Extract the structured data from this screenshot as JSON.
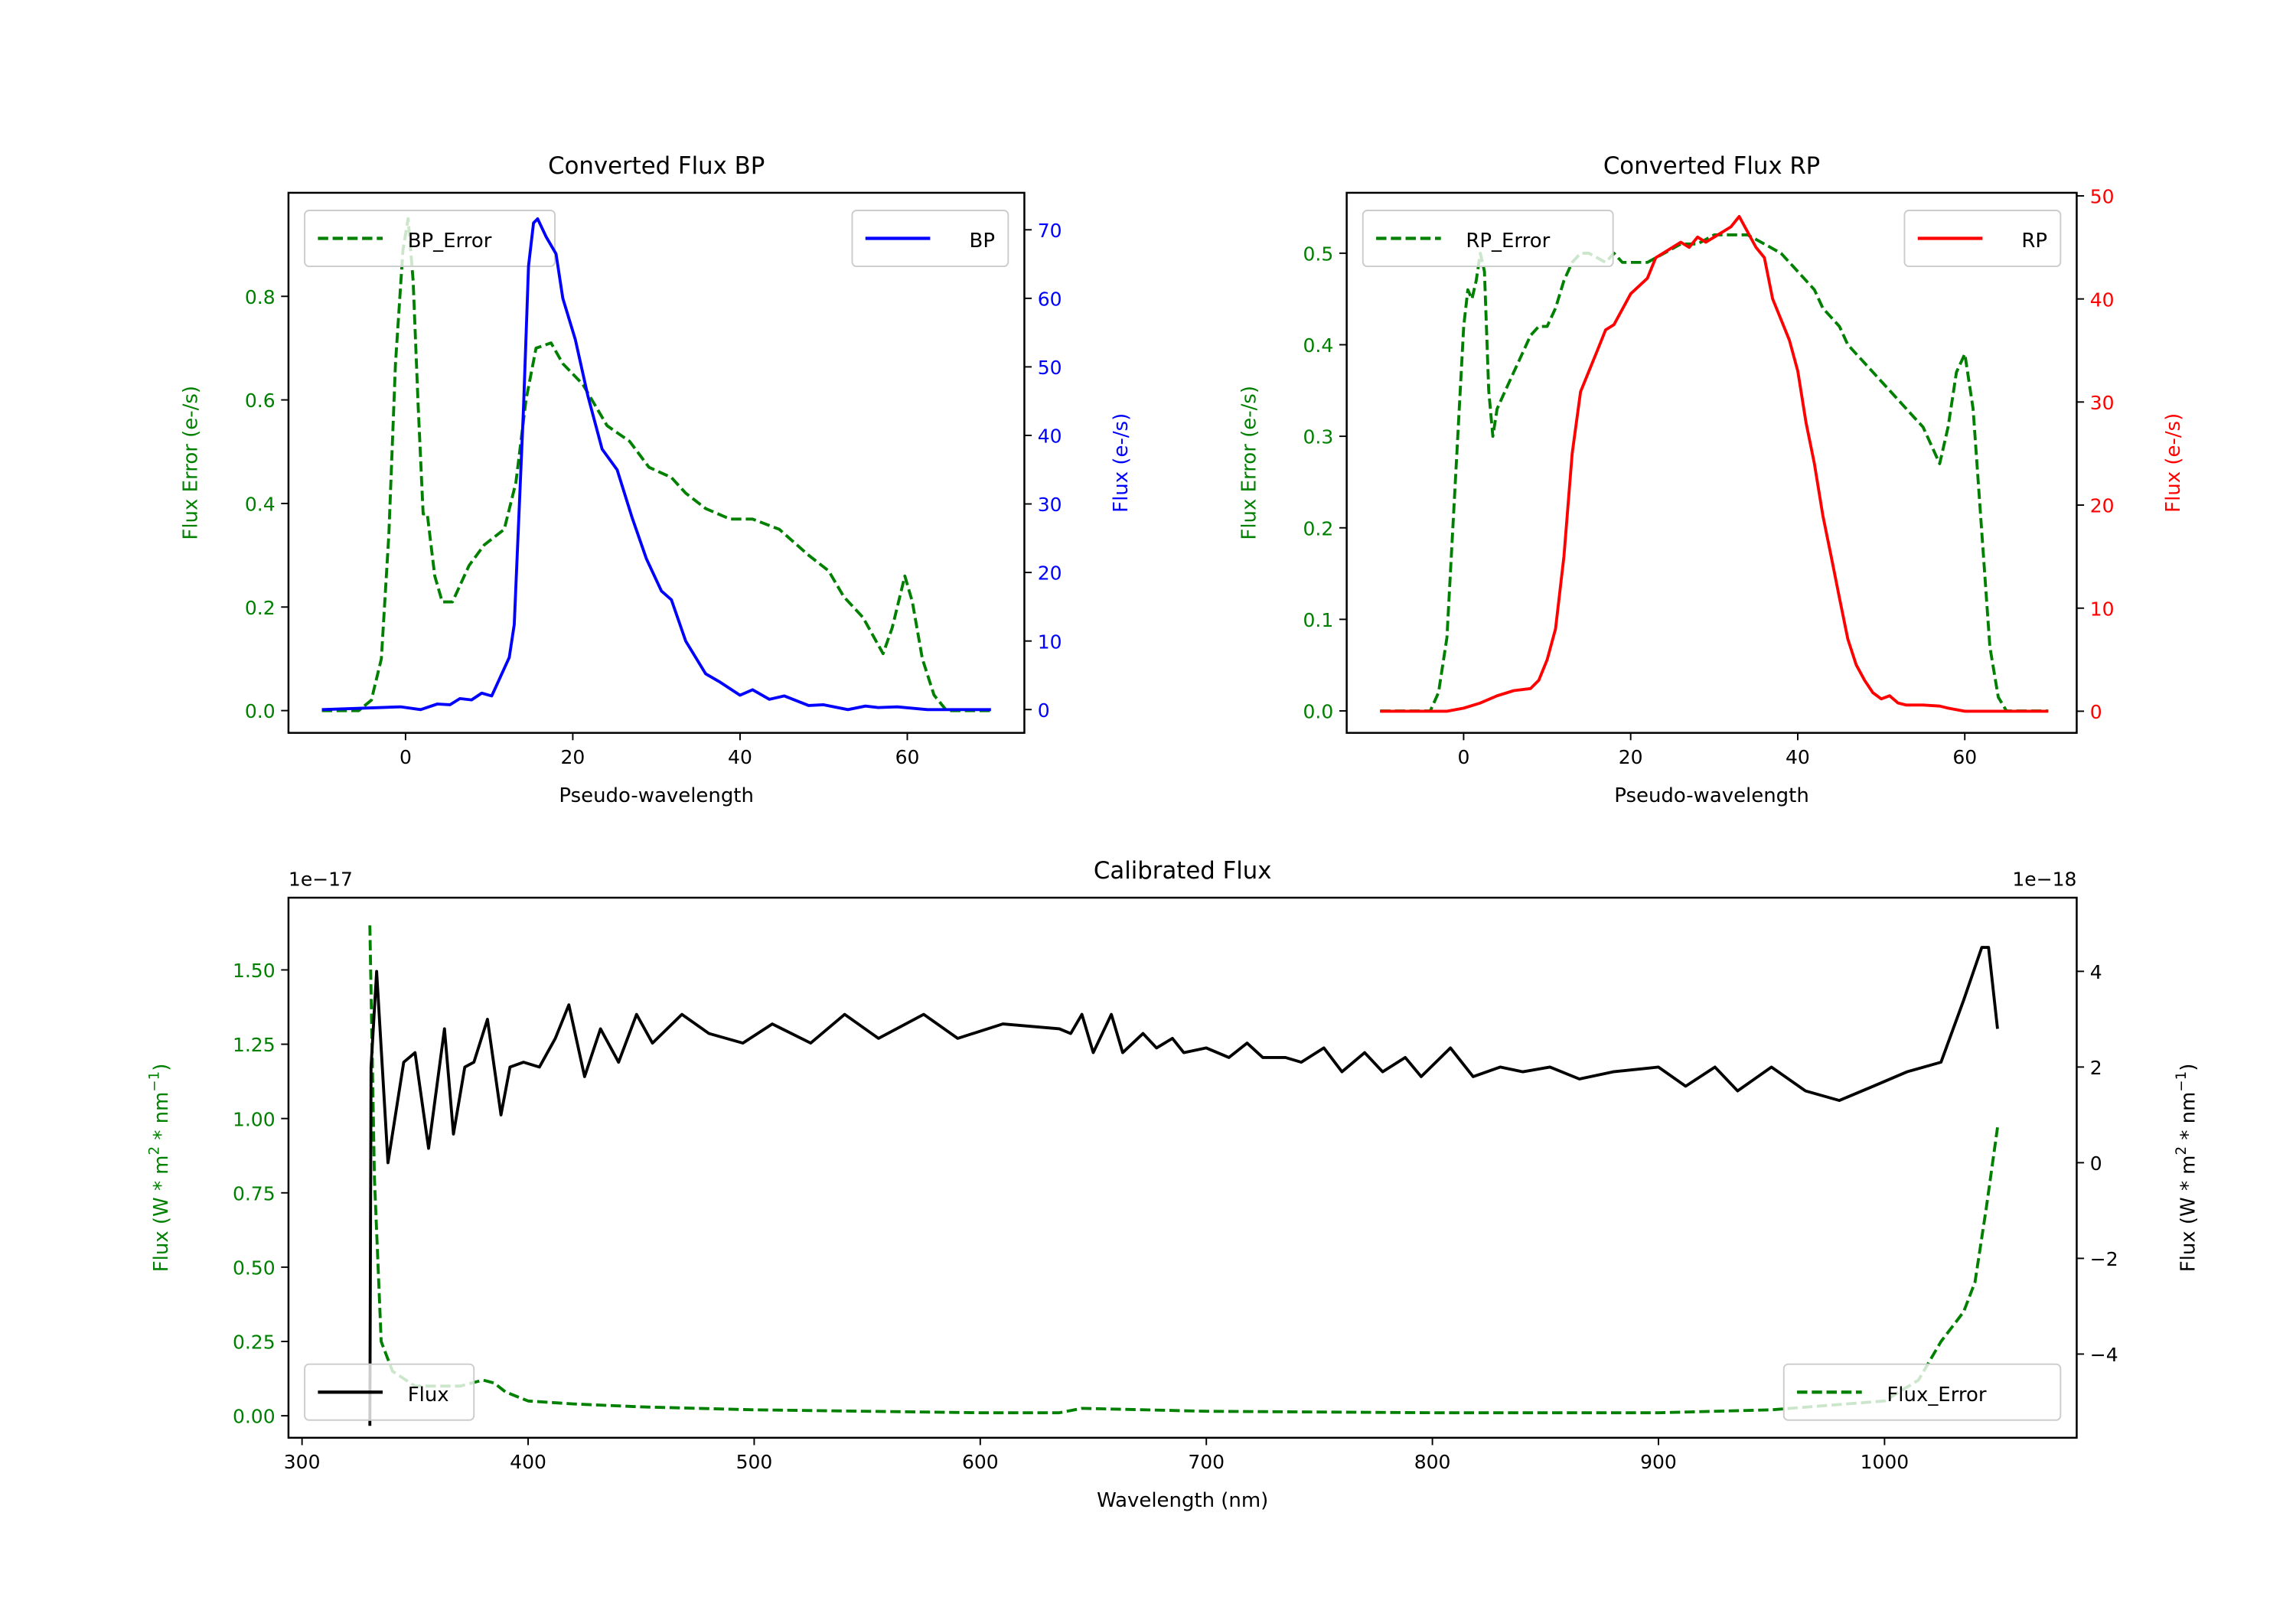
{
  "chart_data": [
    {
      "type": "line",
      "title": "Converted Flux BP",
      "xlabel": "Pseudo-wavelength",
      "ylabel": "Flux Error (e-/s)",
      "ylabel_right": "Flux (e-/s)",
      "xlim": [
        -14,
        74
      ],
      "ylim": [
        -0.043,
        1.0
      ],
      "ylim_right": [
        -3.4,
        75.4
      ],
      "xticks": [
        0,
        20,
        40,
        60
      ],
      "yticks": [
        "0.0",
        "0.2",
        "0.4",
        "0.6",
        "0.8"
      ],
      "yticks_right": [
        "0",
        "10",
        "20",
        "30",
        "40",
        "50",
        "60",
        "70"
      ],
      "series": [
        {
          "name": "BP_Error",
          "axis": "left",
          "style": "dashed",
          "color": "#008000",
          "legend": "upper-left",
          "x": [
            -10,
            -5.6,
            -4.1,
            -2.9,
            -2,
            -1.2,
            -0.3,
            0.3,
            0.9,
            1.5,
            2.1,
            2.6,
            3.5,
            4.4,
            5.6,
            7.6,
            9.4,
            11.8,
            13.2,
            14.4,
            15.6,
            17.4,
            18.8,
            21.2,
            24.1,
            26.8,
            29.1,
            31.8,
            33.5,
            35.9,
            38.8,
            41.5,
            44.7,
            48.2,
            50.6,
            52.4,
            54.7,
            57.1,
            58.2,
            59.7,
            60.6,
            61.8,
            63.2,
            64.7,
            70
          ],
          "y": [
            0,
            0,
            0.02,
            0.1,
            0.34,
            0.67,
            0.89,
            0.95,
            0.83,
            0.59,
            0.38,
            0.38,
            0.26,
            0.21,
            0.21,
            0.28,
            0.32,
            0.35,
            0.44,
            0.6,
            0.7,
            0.71,
            0.67,
            0.63,
            0.55,
            0.52,
            0.47,
            0.45,
            0.42,
            0.39,
            0.37,
            0.37,
            0.35,
            0.3,
            0.27,
            0.22,
            0.18,
            0.11,
            0.16,
            0.26,
            0.21,
            0.1,
            0.03,
            0,
            0
          ]
        },
        {
          "name": "BP",
          "axis": "right",
          "style": "solid",
          "color": "#0000ff",
          "legend": "upper-right",
          "x": [
            -10,
            -0.6,
            1.8,
            3.8,
            5.3,
            6.5,
            7.9,
            9.1,
            10.3,
            12.4,
            13,
            14.1,
            14.7,
            15.3,
            15.8,
            16.8,
            18,
            18.8,
            20.3,
            21.8,
            23.5,
            25.3,
            27.1,
            28.8,
            30.6,
            31.8,
            33.5,
            35.9,
            37.6,
            40,
            41.5,
            43.5,
            45.3,
            48.2,
            50,
            52.9,
            55,
            56.5,
            58.8,
            62.4,
            70
          ],
          "y": [
            0,
            0.4,
            0,
            0.8,
            0.7,
            1.6,
            1.4,
            2.4,
            2,
            7.6,
            12.4,
            44,
            64.7,
            71,
            71.6,
            69,
            66.5,
            60,
            54,
            45.8,
            38,
            35,
            28,
            22,
            17.3,
            16,
            10,
            5.2,
            4,
            2.1,
            2.9,
            1.5,
            2,
            0.6,
            0.7,
            0,
            0.5,
            0.3,
            0.4,
            0,
            0
          ]
        }
      ]
    },
    {
      "type": "line",
      "title": "Converted Flux RP",
      "xlabel": "Pseudo-wavelength",
      "ylabel": "Flux Error (e-/s)",
      "ylabel_right": "Flux (e-/s)",
      "xlim": [
        -14,
        73.4
      ],
      "ylim": [
        -0.024,
        0.566
      ],
      "ylim_right": [
        -2.1,
        50.3
      ],
      "xticks": [
        0,
        20,
        40,
        60
      ],
      "yticks": [
        "0.0",
        "0.1",
        "0.2",
        "0.3",
        "0.4",
        "0.5"
      ],
      "yticks_right": [
        "0",
        "10",
        "20",
        "30",
        "40",
        "50"
      ],
      "series": [
        {
          "name": "RP_Error",
          "axis": "left",
          "style": "dashed",
          "color": "#008000",
          "legend": "upper-left",
          "x": [
            -10,
            -4,
            -3,
            -2,
            -1,
            0,
            0.5,
            1,
            1.5,
            2,
            2.5,
            3,
            3.5,
            4,
            5,
            6,
            7,
            8,
            9,
            10,
            11,
            12,
            13,
            14,
            15,
            16,
            17,
            18,
            19,
            20,
            22,
            24,
            26,
            28,
            30,
            32,
            34,
            36,
            38,
            40,
            42,
            43,
            45,
            46,
            48,
            50,
            52,
            54,
            55,
            56,
            57,
            58,
            59,
            60,
            61,
            62,
            63,
            64,
            65,
            70
          ],
          "y": [
            0,
            0,
            0.02,
            0.08,
            0.25,
            0.42,
            0.46,
            0.45,
            0.47,
            0.5,
            0.48,
            0.35,
            0.3,
            0.33,
            0.35,
            0.37,
            0.39,
            0.41,
            0.42,
            0.42,
            0.44,
            0.47,
            0.49,
            0.5,
            0.5,
            0.495,
            0.49,
            0.5,
            0.49,
            0.49,
            0.49,
            0.5,
            0.51,
            0.51,
            0.52,
            0.52,
            0.52,
            0.51,
            0.5,
            0.48,
            0.46,
            0.44,
            0.42,
            0.4,
            0.38,
            0.36,
            0.34,
            0.32,
            0.31,
            0.29,
            0.27,
            0.31,
            0.37,
            0.39,
            0.33,
            0.2,
            0.07,
            0.015,
            0,
            0
          ]
        },
        {
          "name": "RP",
          "axis": "right",
          "style": "solid",
          "color": "#ff0000",
          "legend": "upper-right",
          "x": [
            -10,
            -2,
            0,
            2,
            4,
            6,
            8,
            9,
            10,
            11,
            12,
            13,
            14,
            15,
            16,
            17,
            18,
            19,
            20,
            22,
            23,
            24,
            26,
            27,
            28,
            29,
            30,
            31,
            32,
            33,
            34,
            35,
            36,
            37,
            38,
            39,
            40,
            41,
            42,
            43,
            44,
            45,
            46,
            47,
            48,
            49,
            50,
            51,
            52,
            53,
            55,
            57,
            58,
            60,
            70
          ],
          "y": [
            0,
            0,
            0.3,
            0.8,
            1.5,
            2,
            2.2,
            3,
            5,
            8,
            15,
            25,
            31,
            33,
            35,
            37,
            37.5,
            39,
            40.5,
            42,
            44,
            44.5,
            45.5,
            45,
            46,
            45.5,
            46,
            46.5,
            47,
            48,
            46.5,
            45,
            44,
            40,
            38,
            36,
            33,
            28,
            24,
            19,
            15,
            11,
            7,
            4.5,
            3,
            1.8,
            1.2,
            1.5,
            0.8,
            0.6,
            0.6,
            0.5,
            0.3,
            0,
            0
          ]
        }
      ]
    },
    {
      "type": "line",
      "title": "Calibrated Flux",
      "xlabel": "Wavelength (nm)",
      "ylabel": "Flux (W * m^2 * nm^-1)",
      "ylabel_right": "Flux (W * m^2 * nm^-1)",
      "offset_left": "1e−17",
      "offset_right": "1e−18",
      "xlim": [
        294,
        1085
      ],
      "ylim": [
        -0.074,
        1.743
      ],
      "ylim_right": [
        -5.75,
        5.54
      ],
      "xticks": [
        300,
        400,
        500,
        600,
        700,
        800,
        900,
        1000
      ],
      "yticks": [
        "0.00",
        "0.25",
        "0.50",
        "0.75",
        "1.00",
        "1.25",
        "1.50"
      ],
      "yticks_right": [
        "−4",
        "−2",
        "0",
        "2",
        "4"
      ],
      "series": [
        {
          "name": "Flux_Error",
          "axis": "left",
          "style": "dashed",
          "color": "#008000",
          "legend": "lower-right",
          "x": [
            330,
            332,
            335,
            340,
            350,
            370,
            380,
            385,
            390,
            400,
            420,
            450,
            500,
            600,
            635,
            645,
            700,
            800,
            900,
            950,
            1000,
            1015,
            1025,
            1035,
            1040,
            1045,
            1050
          ],
          "y": [
            1.65,
            0.8,
            0.25,
            0.15,
            0.1,
            0.1,
            0.12,
            0.11,
            0.08,
            0.05,
            0.04,
            0.03,
            0.02,
            0.01,
            0.01,
            0.025,
            0.015,
            0.01,
            0.01,
            0.02,
            0.05,
            0.12,
            0.25,
            0.35,
            0.45,
            0.7,
            0.97
          ]
        },
        {
          "name": "Flux",
          "axis": "right",
          "style": "solid",
          "color": "#000000",
          "legend": "lower-left",
          "x": [
            330,
            330.5,
            333,
            338,
            345,
            350,
            356,
            363,
            367,
            372,
            376,
            382,
            388,
            392,
            398,
            405,
            412,
            418,
            425,
            432,
            440,
            448,
            455,
            468,
            480,
            495,
            508,
            525,
            540,
            555,
            575,
            590,
            610,
            635,
            640,
            645,
            650,
            658,
            663,
            672,
            678,
            685,
            690,
            700,
            710,
            718,
            725,
            735,
            742,
            752,
            760,
            770,
            778,
            788,
            795,
            808,
            818,
            830,
            840,
            852,
            865,
            880,
            900,
            912,
            925,
            935,
            950,
            965,
            980,
            995,
            1010,
            1025,
            1035,
            1043,
            1046,
            1050
          ],
          "y": [
            -5.5,
            2,
            4.0,
            0,
            2.1,
            2.3,
            0.3,
            2.8,
            0.6,
            2.0,
            2.1,
            3.0,
            1.0,
            2.0,
            2.1,
            2.0,
            2.6,
            3.3,
            1.8,
            2.8,
            2.1,
            3.1,
            2.5,
            3.1,
            2.7,
            2.5,
            2.9,
            2.5,
            3.1,
            2.6,
            3.1,
            2.6,
            2.9,
            2.8,
            2.7,
            3.1,
            2.3,
            3.1,
            2.3,
            2.7,
            2.4,
            2.6,
            2.3,
            2.4,
            2.2,
            2.5,
            2.2,
            2.2,
            2.1,
            2.4,
            1.9,
            2.3,
            1.9,
            2.2,
            1.8,
            2.4,
            1.8,
            2.0,
            1.9,
            2.0,
            1.75,
            1.9,
            2.0,
            1.6,
            2.0,
            1.5,
            2.0,
            1.5,
            1.3,
            1.6,
            1.9,
            2.1,
            3.4,
            4.5,
            4.5,
            2.8
          ]
        }
      ]
    }
  ]
}
